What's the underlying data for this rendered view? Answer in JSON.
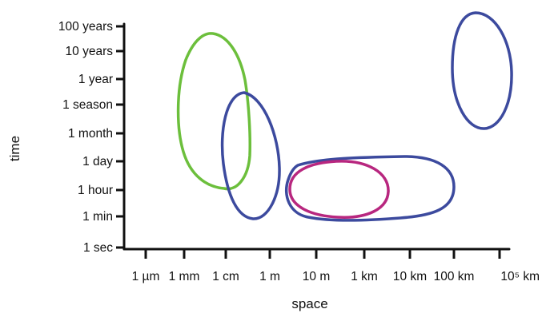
{
  "axes": {
    "x_title": "space",
    "y_title": "time",
    "x_ticks": [
      "1 µm",
      "1 mm",
      "1 cm",
      "1 m",
      "10 m",
      "1 km",
      "10 km",
      "100 km",
      "10⁵ km"
    ],
    "y_ticks": [
      "100 years",
      "10 years",
      "1 year",
      "1 season",
      "1 month",
      "1 day",
      "1 hour",
      "1 min",
      "1 sec"
    ]
  },
  "colors": {
    "axis": "#111111",
    "green": "#6cbf3c",
    "blue": "#3c4a9e",
    "magenta": "#b8277f"
  },
  "ellipses": [
    {
      "name": "green-ellipse",
      "color": "green"
    },
    {
      "name": "blue-ellipse-small-scale",
      "color": "blue"
    },
    {
      "name": "blue-ellipse-km-scale",
      "color": "blue"
    },
    {
      "name": "magenta-ellipse",
      "color": "magenta"
    },
    {
      "name": "blue-ellipse-large-scale",
      "color": "blue"
    }
  ]
}
